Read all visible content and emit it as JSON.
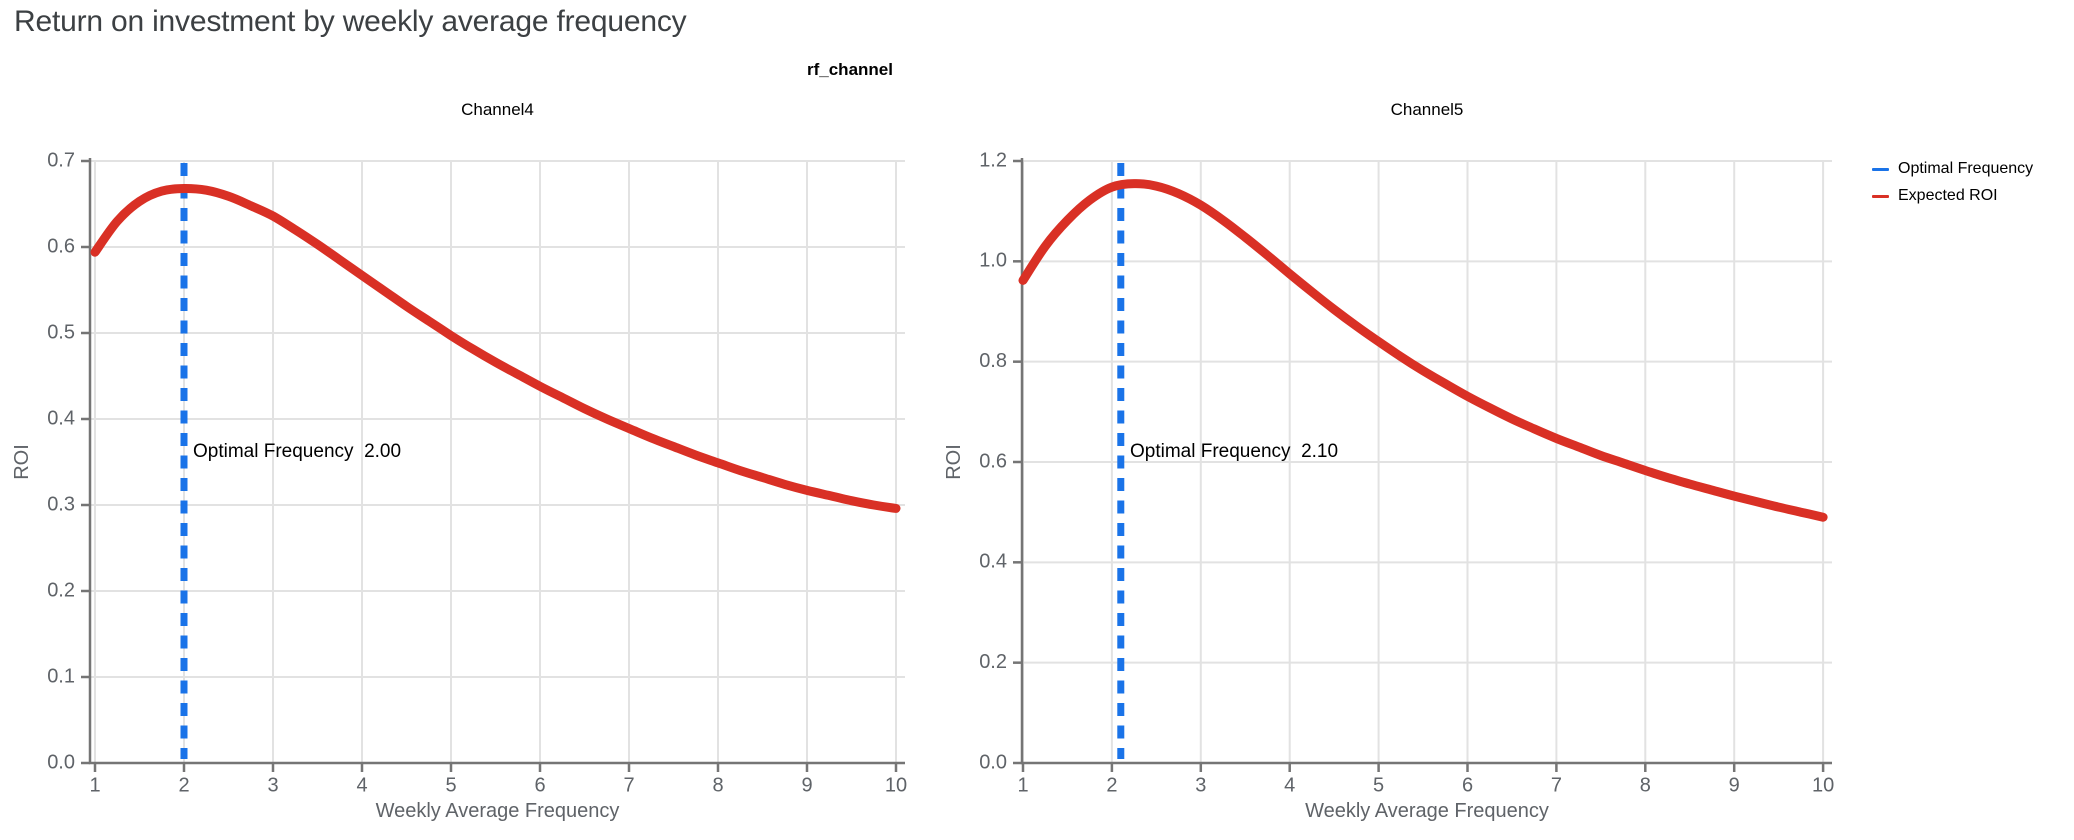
{
  "page": {
    "title": "Return on investment by weekly average frequency"
  },
  "figure": {
    "suptitle": "rf_channel",
    "legend": {
      "items": [
        {
          "label": "Optimal Frequency",
          "color": "#1A73E8",
          "style": "dashed"
        },
        {
          "label": "Expected ROI",
          "color": "#D93025",
          "style": "solid"
        }
      ]
    },
    "colors": {
      "curve_red": "#D93025",
      "optimal_blue": "#1A73E8",
      "grid": "#E2E2E2",
      "spine": "#757575",
      "tick_label": "#5F6368",
      "axis_title": "#5F6368",
      "main_title": "#3C4043",
      "black_text": "#000000"
    }
  },
  "chart_data": [
    {
      "type": "line",
      "title": "Channel4",
      "xlabel": "Weekly Average Frequency",
      "ylabel": "ROI",
      "xlim": [
        1,
        10
      ],
      "ylim": [
        0.0,
        0.7
      ],
      "grid": true,
      "x_ticks": [
        1,
        2,
        3,
        4,
        5,
        6,
        7,
        8,
        9,
        10
      ],
      "x_tick_labels": [
        "1",
        "2",
        "3",
        "4",
        "5",
        "6",
        "7",
        "8",
        "9",
        "10"
      ],
      "y_ticks": [
        0.0,
        0.1,
        0.2,
        0.3,
        0.4,
        0.5,
        0.6,
        0.7
      ],
      "y_tick_labels": [
        "0.0",
        "0.1",
        "0.2",
        "0.3",
        "0.4",
        "0.5",
        "0.6",
        "0.7"
      ],
      "optimal_frequency": 2.0,
      "annotation": "Optimal Frequency  2.00",
      "series": [
        {
          "name": "Expected ROI",
          "x": [
            1.0,
            1.25,
            1.5,
            1.75,
            2.0,
            2.25,
            2.5,
            2.75,
            3.0,
            3.25,
            3.5,
            3.75,
            4.0,
            4.25,
            4.5,
            4.75,
            5.0,
            5.25,
            5.5,
            5.75,
            6.0,
            6.25,
            6.5,
            6.75,
            7.0,
            7.25,
            7.5,
            7.75,
            8.0,
            8.25,
            8.5,
            8.75,
            9.0,
            9.25,
            9.5,
            9.75,
            10.0
          ],
          "y": [
            0.594,
            0.63,
            0.653,
            0.665,
            0.668,
            0.666,
            0.659,
            0.648,
            0.636,
            0.62,
            0.603,
            0.585,
            0.567,
            0.549,
            0.531,
            0.514,
            0.497,
            0.481,
            0.466,
            0.452,
            0.438,
            0.425,
            0.412,
            0.4,
            0.389,
            0.378,
            0.368,
            0.358,
            0.349,
            0.34,
            0.332,
            0.324,
            0.317,
            0.311,
            0.305,
            0.3,
            0.296
          ]
        }
      ]
    },
    {
      "type": "line",
      "title": "Channel5",
      "xlabel": "Weekly Average Frequency",
      "ylabel": "ROI",
      "xlim": [
        1,
        10
      ],
      "ylim": [
        0.0,
        1.2
      ],
      "grid": true,
      "x_ticks": [
        1,
        2,
        3,
        4,
        5,
        6,
        7,
        8,
        9,
        10
      ],
      "x_tick_labels": [
        "1",
        "2",
        "3",
        "4",
        "5",
        "6",
        "7",
        "8",
        "9",
        "10"
      ],
      "y_ticks": [
        0.0,
        0.2,
        0.4,
        0.6,
        0.8,
        1.0,
        1.2
      ],
      "y_tick_labels": [
        "0.0",
        "0.2",
        "0.4",
        "0.6",
        "0.8",
        "1.0",
        "1.2"
      ],
      "optimal_frequency": 2.1,
      "annotation": "Optimal Frequency  2.10",
      "series": [
        {
          "name": "Expected ROI",
          "x": [
            1.0,
            1.25,
            1.5,
            1.75,
            2.0,
            2.25,
            2.5,
            2.75,
            3.0,
            3.25,
            3.5,
            3.75,
            4.0,
            4.25,
            4.5,
            4.75,
            5.0,
            5.25,
            5.5,
            5.75,
            6.0,
            6.25,
            6.5,
            6.75,
            7.0,
            7.25,
            7.5,
            7.75,
            8.0,
            8.25,
            8.5,
            8.75,
            9.0,
            9.25,
            9.5,
            9.75,
            10.0
          ],
          "y": [
            0.962,
            1.03,
            1.082,
            1.122,
            1.148,
            1.155,
            1.15,
            1.135,
            1.112,
            1.082,
            1.048,
            1.012,
            0.975,
            0.939,
            0.904,
            0.871,
            0.84,
            0.81,
            0.782,
            0.756,
            0.731,
            0.708,
            0.686,
            0.666,
            0.647,
            0.63,
            0.613,
            0.598,
            0.583,
            0.569,
            0.556,
            0.544,
            0.532,
            0.521,
            0.51,
            0.5,
            0.49
          ]
        }
      ]
    }
  ]
}
